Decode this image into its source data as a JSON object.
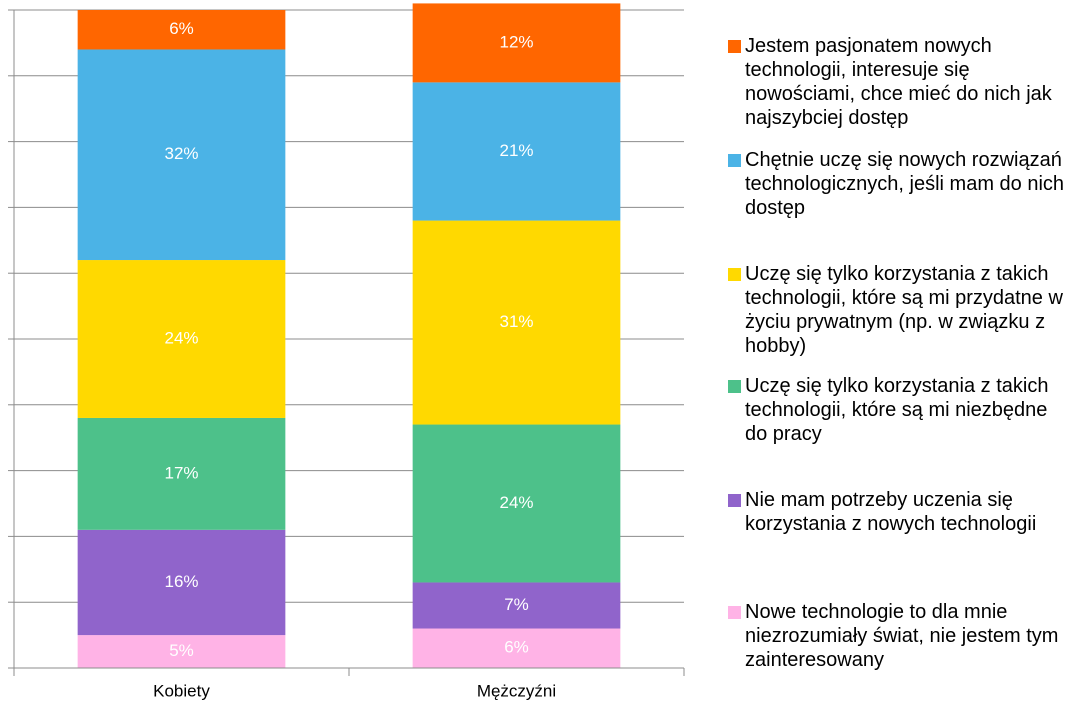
{
  "chart_data": {
    "type": "stacked-bar",
    "categories": [
      "Kobiety",
      "Mężczyźni"
    ],
    "ylim": [
      0,
      100
    ],
    "yticks": [
      0,
      10,
      20,
      30,
      40,
      50,
      60,
      70,
      80,
      90,
      100
    ],
    "grid": true,
    "series": [
      {
        "name": "Nowe technologie to dla mnie niezrozumiały świat, nie jestem tym zainteresowany",
        "color": "#ffb3e6",
        "values": [
          5,
          6
        ]
      },
      {
        "name": "Nie mam potrzeby uczenia się korzystania z nowych technologii",
        "color": "#9064cb",
        "values": [
          16,
          7
        ]
      },
      {
        "name": "Uczę się tylko korzystania z takich technologii, które są mi niezbędne do pracy",
        "color": "#4dc18a",
        "values": [
          17,
          24
        ]
      },
      {
        "name": "Uczę się tylko korzystania z takich technologii, które są mi przydatne w życiu prywatnym (np. w związku z hobby)",
        "color": "#ffd900",
        "values": [
          24,
          31
        ]
      },
      {
        "name": "Chętnie uczę się nowych rozwiązań technologicznych, jeśli mam do nich dostęp",
        "color": "#4bb3e6",
        "values": [
          32,
          21
        ]
      },
      {
        "name": "Jestem pasjonatem nowych technologii, interesuje się nowościami, chce mieć do nich jak najszybciej dostęp",
        "color": "#ff6600",
        "values": [
          6,
          12
        ]
      }
    ],
    "value_labels": [
      [
        "5%",
        "6%"
      ],
      [
        "16%",
        "7%"
      ],
      [
        "17%",
        "24%"
      ],
      [
        "24%",
        "31%"
      ],
      [
        "32%",
        "21%"
      ],
      [
        "6%",
        "12%"
      ]
    ],
    "legend": "right"
  }
}
